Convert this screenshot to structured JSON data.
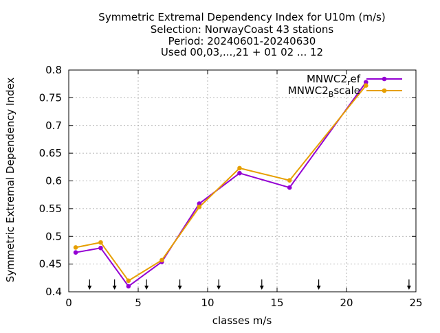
{
  "chart_data": {
    "type": "line",
    "title_lines": [
      "Symmetric Extremal Dependency Index  for U10m (m/s)",
      "Selection: NorwayCoast     43 stations",
      "Period: 20240601-20240630",
      "Used 00,03,...,21 + 01 02 ... 12"
    ],
    "xlabel": "classes m/s",
    "ylabel": "Symmetric Extremal Dependency Index",
    "xlim": [
      0,
      25
    ],
    "ylim": [
      0.4,
      0.8
    ],
    "x_ticks": [
      "0",
      "5",
      "10",
      "15",
      "20",
      "25"
    ],
    "y_ticks": [
      "0.4",
      "0.45",
      "0.5",
      "0.55",
      "0.6",
      "0.65",
      "0.7",
      "0.75",
      "0.8"
    ],
    "grid": true,
    "legend_position": "top-right",
    "series": [
      {
        "name_base": "MNWC2",
        "name_sub": "r",
        "name_rest": "ef",
        "color": "#9400d3",
        "x": [
          0.5,
          2.3,
          4.3,
          6.7,
          9.4,
          12.3,
          15.9,
          21.4
        ],
        "y": [
          0.471,
          0.479,
          0.41,
          0.454,
          0.559,
          0.614,
          0.588,
          0.778
        ]
      },
      {
        "name_base": "MNWC2",
        "name_sub": "B",
        "name_rest": "scale",
        "color": "#e69f00",
        "x": [
          0.5,
          2.3,
          4.3,
          6.7,
          9.4,
          12.3,
          15.9,
          21.4
        ],
        "y": [
          0.48,
          0.489,
          0.42,
          0.457,
          0.553,
          0.623,
          0.601,
          0.772
        ]
      }
    ],
    "class_limit_arrows": [
      1.5,
      3.3,
      5.6,
      8.0,
      10.8,
      13.9,
      18.0,
      24.5
    ]
  }
}
